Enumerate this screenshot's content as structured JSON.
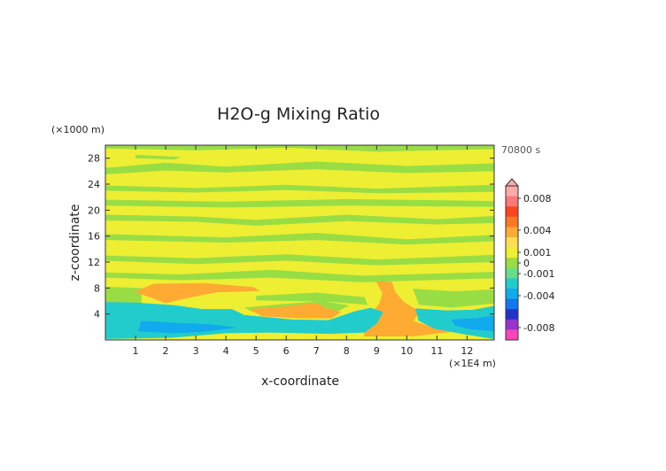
{
  "chart_data": {
    "type": "heatmap",
    "title": "H2O-g Mixing Ratio",
    "xlabel": "x-coordinate",
    "ylabel": "z-coordinate",
    "x_unit": "(×1E4 m)",
    "y_unit": "(×1000 m)",
    "time_label": "70800 s",
    "xlim": [
      0,
      12.9
    ],
    "ylim": [
      0,
      30
    ],
    "x_ticks": [
      1,
      2,
      3,
      4,
      5,
      6,
      7,
      8,
      9,
      10,
      11,
      12
    ],
    "y_ticks": [
      4,
      8,
      12,
      16,
      20,
      24,
      28
    ],
    "colorbar": {
      "levels": [
        -0.008,
        -0.004,
        -0.001,
        0,
        0.001,
        0.004,
        0.008
      ],
      "labels": [
        "-0.008",
        "-0.004",
        "-0.001",
        "0",
        "0.001",
        "0.004",
        "0.008"
      ],
      "colors": [
        "#ff44bb",
        "#9933cc",
        "#2233cc",
        "#1177ee",
        "#11aaee",
        "#22cccc",
        "#66dd88",
        "#99dd44",
        "#eeee33",
        "#ffdd55",
        "#ffaa33",
        "#ff7722",
        "#ff4422",
        "#ff7777",
        "#ffaaaa"
      ]
    },
    "regions": [
      {
        "level": "positive",
        "color": "#ffaa33",
        "points": [
          [
            1.6,
            8.6
          ],
          [
            3.3,
            8.7
          ],
          [
            4.9,
            8.1
          ],
          [
            5.1,
            7.6
          ],
          [
            3.7,
            7.4
          ],
          [
            2.6,
            6.4
          ],
          [
            2.0,
            5.7
          ],
          [
            1.5,
            6.6
          ],
          [
            1.0,
            7.4
          ]
        ]
      },
      {
        "level": "positive",
        "color": "#ffaa33",
        "points": [
          [
            4.8,
            4.7
          ],
          [
            6.0,
            5.1
          ],
          [
            7.0,
            5.7
          ],
          [
            7.3,
            4.9
          ],
          [
            7.8,
            4.3
          ],
          [
            7.5,
            3.4
          ],
          [
            6.4,
            3.4
          ],
          [
            5.2,
            3.7
          ]
        ]
      },
      {
        "level": "positive",
        "color": "#ffaa33",
        "points": [
          [
            9.0,
            9.0
          ],
          [
            9.5,
            8.9
          ],
          [
            9.6,
            7.4
          ],
          [
            9.9,
            5.8
          ],
          [
            10.4,
            4.4
          ],
          [
            10.2,
            2.9
          ],
          [
            10.8,
            2.0
          ],
          [
            11.5,
            1.3
          ],
          [
            10.2,
            0.6
          ],
          [
            8.6,
            0.6
          ],
          [
            8.6,
            2.0
          ],
          [
            8.8,
            3.8
          ],
          [
            9.1,
            5.6
          ],
          [
            9.2,
            7.2
          ]
        ]
      },
      {
        "level": "negative",
        "color": "#22cccc",
        "points": [
          [
            0,
            5.8
          ],
          [
            1.0,
            5.7
          ],
          [
            2.3,
            5.3
          ],
          [
            3.2,
            4.7
          ],
          [
            4.2,
            4.7
          ],
          [
            4.6,
            3.8
          ],
          [
            6.2,
            3.1
          ],
          [
            7.4,
            3.0
          ],
          [
            8.3,
            4.4
          ],
          [
            8.8,
            4.9
          ],
          [
            9.2,
            4.3
          ],
          [
            9.0,
            2.6
          ],
          [
            8.6,
            1.2
          ],
          [
            7.5,
            1.0
          ],
          [
            5.5,
            1.2
          ],
          [
            4.0,
            1.1
          ],
          [
            2.2,
            0.4
          ],
          [
            0,
            0.2
          ]
        ]
      },
      {
        "level": "negative",
        "color": "#22cccc",
        "points": [
          [
            10.3,
            4.8
          ],
          [
            11.3,
            4.5
          ],
          [
            12.2,
            4.6
          ],
          [
            12.9,
            5.2
          ],
          [
            12.9,
            0.2
          ],
          [
            11.8,
            1.0
          ],
          [
            10.9,
            1.8
          ],
          [
            10.4,
            3.0
          ]
        ]
      },
      {
        "level": "negative",
        "color": "#11aaee",
        "points": [
          [
            1.2,
            2.9
          ],
          [
            2.3,
            2.6
          ],
          [
            3.4,
            2.4
          ],
          [
            4.3,
            1.9
          ],
          [
            3.2,
            1.3
          ],
          [
            2.2,
            1.1
          ],
          [
            1.1,
            1.4
          ]
        ]
      },
      {
        "level": "negative",
        "color": "#11aaee",
        "points": [
          [
            11.5,
            3.1
          ],
          [
            12.3,
            3.3
          ],
          [
            12.9,
            3.7
          ],
          [
            12.9,
            1.4
          ],
          [
            12.1,
            1.7
          ],
          [
            11.6,
            2.3
          ]
        ]
      }
    ]
  }
}
